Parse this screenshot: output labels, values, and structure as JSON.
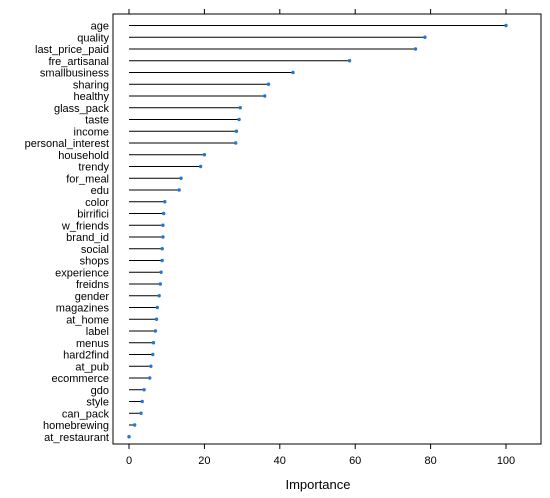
{
  "chart_data": {
    "type": "dotplot",
    "xlabel": "Importance",
    "xlim": [
      -7,
      107
    ],
    "x_ticks": [
      0,
      20,
      40,
      60,
      80,
      100
    ],
    "grid": false,
    "point_color": "#1f78d1",
    "categories": [
      "age",
      "quality",
      "last_price_paid",
      "fre_artisanal",
      "smallbusiness",
      "sharing",
      "healthy",
      "glass_pack",
      "taste",
      "income",
      "personal_interest",
      "household",
      "trendy",
      "for_meal",
      "edu",
      "color",
      "birrifici",
      "w_friends",
      "brand_id",
      "social",
      "shops",
      "experience",
      "freidns",
      "gender",
      "magazines",
      "at_home",
      "label",
      "menus",
      "hard2find",
      "at_pub",
      "ecommerce",
      "gdo",
      "style",
      "can_pack",
      "homebrewing",
      "at_restaurant"
    ],
    "values": [
      100,
      78.5,
      76,
      58.5,
      43.5,
      37,
      36,
      29.5,
      29.2,
      28.5,
      28.3,
      20,
      19,
      13.8,
      13.3,
      9.5,
      9.2,
      9.0,
      9.0,
      8.8,
      8.8,
      8.5,
      8.3,
      8.0,
      7.5,
      7.3,
      7.0,
      6.5,
      6.3,
      5.8,
      5.5,
      4.0,
      3.5,
      3.2,
      1.5,
      0
    ]
  }
}
